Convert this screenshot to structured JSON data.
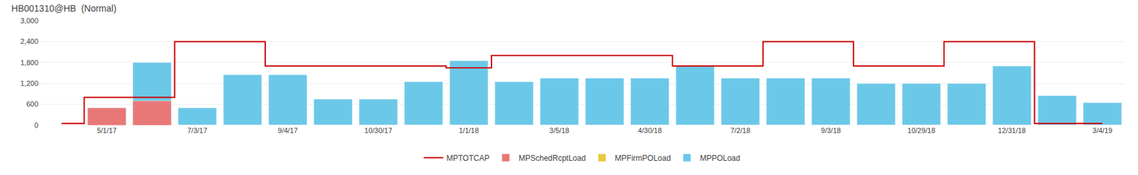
{
  "chart_data": {
    "type": "bar",
    "title": "HB001310@HB  (Normal)",
    "categories": [
      null,
      "5/1/17",
      null,
      "7/3/17",
      null,
      "9/4/17",
      null,
      "10/30/17",
      null,
      "1/1/18",
      null,
      "3/5/18",
      null,
      "4/30/18",
      null,
      "7/2/18",
      null,
      "9/3/18",
      null,
      "10/29/18",
      null,
      "12/31/18",
      null,
      "3/4/19"
    ],
    "series": [
      {
        "name": "MPTOTCAP",
        "type": "line",
        "line_style": "step",
        "color": "#cc0000",
        "values": [
          50,
          800,
          800,
          2400,
          2400,
          1700,
          1700,
          1700,
          1700,
          1650,
          2000,
          2000,
          2000,
          2000,
          1700,
          1700,
          2400,
          2400,
          1700,
          1700,
          2400,
          2400,
          50,
          50
        ]
      },
      {
        "name": "MPSchedRcptLoad",
        "type": "bar",
        "color": "#e87878",
        "values": [
          0,
          500,
          700,
          0,
          0,
          0,
          0,
          0,
          0,
          0,
          0,
          0,
          0,
          0,
          0,
          0,
          0,
          0,
          0,
          0,
          0,
          0,
          0,
          0
        ]
      },
      {
        "name": "MPFirmPOLoad",
        "type": "bar",
        "color": "#e8c840",
        "values": [
          0,
          0,
          0,
          0,
          0,
          0,
          0,
          0,
          0,
          0,
          0,
          0,
          0,
          0,
          0,
          0,
          0,
          0,
          0,
          0,
          0,
          0,
          0,
          0
        ]
      },
      {
        "name": "MPPOLoad",
        "type": "bar",
        "color": "#6cc8e8",
        "values": [
          0,
          500,
          1800,
          500,
          1450,
          1450,
          750,
          750,
          1250,
          1850,
          1250,
          1350,
          1350,
          1350,
          1700,
          1350,
          1350,
          1350,
          1200,
          1200,
          1200,
          1700,
          850,
          650
        ]
      }
    ],
    "stacked": false,
    "ylim": [
      0,
      3000
    ],
    "yticks": [
      0,
      600,
      {
        "value": 1200,
        "label": "1,200"
      },
      {
        "value": 1800,
        "label": "1,800"
      },
      {
        "value": 2400,
        "label": "2,400"
      },
      {
        "value": 3000,
        "label": "3,000"
      }
    ],
    "grid": true,
    "legend": "bottom"
  }
}
